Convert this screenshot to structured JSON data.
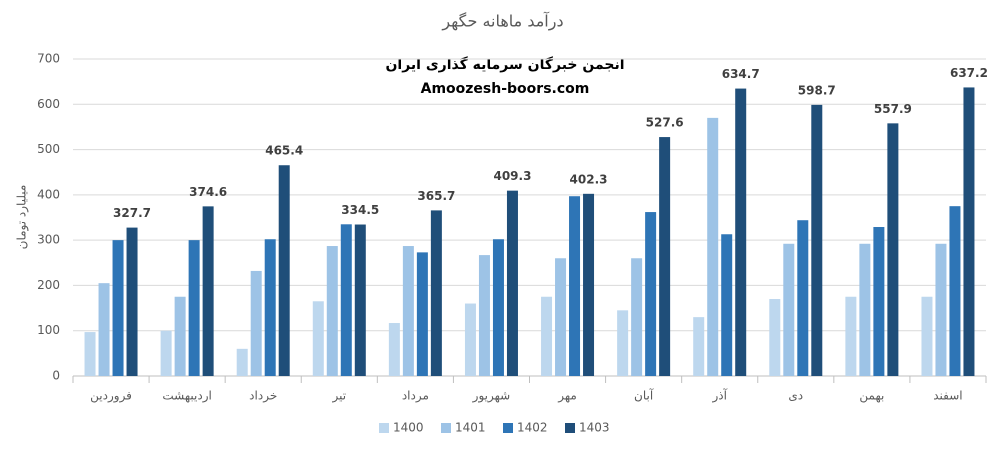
{
  "chart_data": {
    "type": "bar",
    "title": "درآمد ماهانه حگهر",
    "annotations": [
      "انجمن خبرگان سرمایه گذاری ایران",
      "Amoozesh-boors.com"
    ],
    "y_label": "میلیارد تومان",
    "categories": [
      "فروردین",
      "اردیبهشت",
      "خرداد",
      "تیر",
      "مرداد",
      "شهریور",
      "مهر",
      "آبان",
      "آذر",
      "دی",
      "بهمن",
      "اسفند"
    ],
    "series": [
      {
        "name": "1400",
        "color": "#bdd7ee",
        "values": [
          97,
          100,
          60,
          165,
          117,
          160,
          175,
          145,
          130,
          170,
          175,
          175
        ]
      },
      {
        "name": "1401",
        "color": "#9dc3e6",
        "values": [
          205,
          175,
          232,
          287,
          287,
          267,
          260,
          260,
          570,
          292,
          292,
          292
        ]
      },
      {
        "name": "1402",
        "color": "#2e75b6",
        "values": [
          300,
          300,
          302,
          335,
          273,
          302,
          397,
          362,
          313,
          344,
          329,
          375
        ]
      },
      {
        "name": "1403",
        "color": "#1f4e79",
        "values": [
          327.7,
          374.6,
          465.4,
          334.5,
          365.7,
          409.3,
          402.3,
          527.6,
          634.7,
          598.7,
          557.9,
          637.2
        ],
        "data_labels": true
      }
    ],
    "ylim": [
      0,
      700
    ],
    "yticks": [
      0,
      100,
      200,
      300,
      400,
      500,
      600,
      700
    ],
    "grid": true,
    "legend": "bottom"
  }
}
